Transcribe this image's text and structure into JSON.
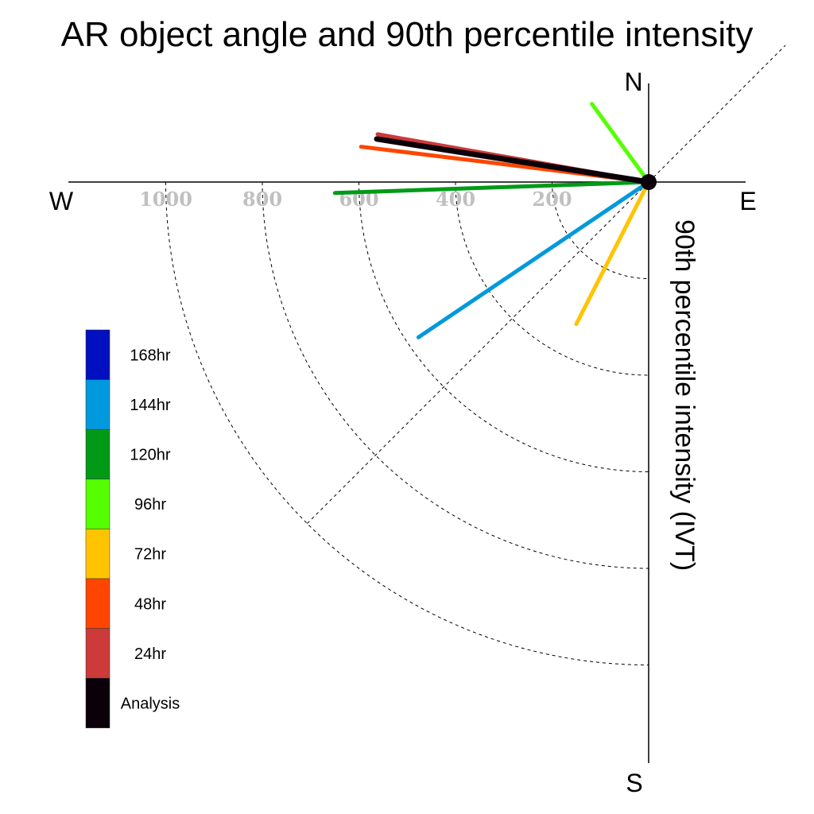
{
  "chart_data": {
    "type": "polar-quadrant",
    "title": "AR object angle and 90th percentile intensity",
    "ylabel": "90th percentile intensity (IVT)",
    "directions": {
      "north": "N",
      "south": "S",
      "east": "E",
      "west": "W"
    },
    "radial_ticks": [
      200,
      400,
      600,
      800,
      1000
    ],
    "radial_range": [
      0,
      1200
    ],
    "grid": true,
    "legend_placement": "left",
    "series": [
      {
        "name": "168hr",
        "color": "#0010c0",
        "angle_deg": null,
        "intensity": null
      },
      {
        "name": "144hr",
        "color": "#0099dd",
        "angle_deg": 214,
        "intensity": 575
      },
      {
        "name": "120hr",
        "color": "#009a17",
        "angle_deg": 182,
        "intensity": 650
      },
      {
        "name": "96hr",
        "color": "#55ff00",
        "angle_deg": 126,
        "intensity": 200
      },
      {
        "name": "72hr",
        "color": "#ffc400",
        "angle_deg": 243,
        "intensity": 330
      },
      {
        "name": "48hr",
        "color": "#ff4500",
        "angle_deg": 173,
        "intensity": 600
      },
      {
        "name": "24hr",
        "color": "#cc3a3a",
        "angle_deg": 170,
        "intensity": 570
      },
      {
        "name": "Analysis",
        "color": "#0b0009",
        "angle_deg": 171,
        "intensity": 570
      }
    ]
  }
}
